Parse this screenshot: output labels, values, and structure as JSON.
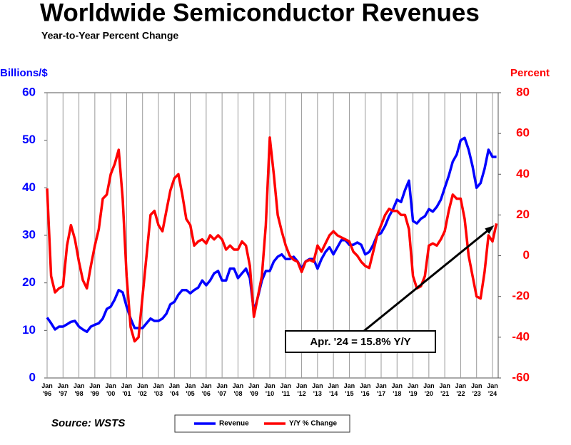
{
  "chart_data": {
    "type": "line",
    "title": "Worldwide Semiconductor Revenues",
    "subtitle": "Year-to-Year Percent Change",
    "ylabel": "Billions/$",
    "y2label": "Percent",
    "source": "Source: WSTS",
    "annotation": "Apr. '24 = 15.8% Y/Y",
    "x": [
      1996,
      1996.25,
      1996.5,
      1996.75,
      1997,
      1997.25,
      1997.5,
      1997.75,
      1998,
      1998.25,
      1998.5,
      1998.75,
      1999,
      1999.25,
      1999.5,
      1999.75,
      2000,
      2000.25,
      2000.5,
      2000.75,
      2001,
      2001.25,
      2001.5,
      2001.75,
      2002,
      2002.25,
      2002.5,
      2002.75,
      2003,
      2003.25,
      2003.5,
      2003.75,
      2004,
      2004.25,
      2004.5,
      2004.75,
      2005,
      2005.25,
      2005.5,
      2005.75,
      2006,
      2006.25,
      2006.5,
      2006.75,
      2007,
      2007.25,
      2007.5,
      2007.75,
      2008,
      2008.25,
      2008.5,
      2008.75,
      2009,
      2009.25,
      2009.5,
      2009.75,
      2010,
      2010.25,
      2010.5,
      2010.75,
      2011,
      2011.25,
      2011.5,
      2011.75,
      2012,
      2012.25,
      2012.5,
      2012.75,
      2013,
      2013.25,
      2013.5,
      2013.75,
      2014,
      2014.25,
      2014.5,
      2014.75,
      2015,
      2015.25,
      2015.5,
      2015.75,
      2016,
      2016.25,
      2016.5,
      2016.75,
      2017,
      2017.25,
      2017.5,
      2017.75,
      2018,
      2018.25,
      2018.5,
      2018.75,
      2019,
      2019.25,
      2019.5,
      2019.75,
      2020,
      2020.25,
      2020.5,
      2020.75,
      2021,
      2021.25,
      2021.5,
      2021.75,
      2022,
      2022.25,
      2022.5,
      2022.75,
      2023,
      2023.25,
      2023.5,
      2023.75,
      2024,
      2024.25
    ],
    "series": [
      {
        "name": "Revenue",
        "color": "#0000ff",
        "values": [
          12.7,
          11.5,
          10.2,
          10.8,
          10.8,
          11.3,
          11.8,
          12.0,
          10.8,
          10.2,
          9.7,
          10.8,
          11.2,
          11.5,
          12.5,
          14.5,
          15.0,
          16.5,
          18.5,
          18.0,
          15.0,
          12.5,
          10.5,
          10.5,
          10.5,
          11.5,
          12.5,
          12.0,
          12.0,
          12.5,
          13.5,
          15.5,
          16.0,
          17.5,
          18.5,
          18.5,
          17.8,
          18.5,
          19.0,
          20.5,
          19.5,
          20.5,
          22.0,
          22.5,
          20.5,
          20.5,
          23.0,
          23.0,
          21.0,
          22.0,
          23.0,
          21.0,
          14.0,
          17.0,
          20.5,
          22.5,
          22.5,
          24.5,
          25.5,
          26.0,
          25.0,
          25.0,
          25.5,
          24.5,
          23.0,
          24.5,
          25.0,
          25.0,
          23.0,
          25.0,
          26.5,
          27.5,
          26.0,
          27.5,
          29.0,
          29.0,
          28.0,
          28.0,
          28.5,
          28.0,
          26.0,
          26.5,
          28.0,
          30.0,
          30.5,
          32.0,
          34.0,
          35.5,
          37.5,
          37.0,
          39.5,
          41.5,
          33.0,
          32.5,
          33.5,
          34.0,
          35.5,
          35.0,
          36.0,
          37.5,
          40.0,
          42.5,
          45.5,
          47.0,
          50.0,
          50.5,
          48.0,
          44.5,
          40.0,
          41.0,
          44.0,
          48.0,
          46.5,
          46.5
        ]
      },
      {
        "name": "Y/Y % Change",
        "color": "#ff0000",
        "axis": "y2",
        "values": [
          33,
          -10,
          -18,
          -16,
          -15,
          5,
          15,
          8,
          -3,
          -12,
          -16,
          -5,
          5,
          13,
          28,
          30,
          40,
          45,
          52,
          28,
          -10,
          -35,
          -42,
          -40,
          -20,
          0,
          20,
          22,
          15,
          12,
          22,
          32,
          38,
          40,
          30,
          18,
          15,
          5,
          7,
          8,
          6,
          10,
          8,
          10,
          8,
          3,
          5,
          3,
          3,
          7,
          5,
          -5,
          -30,
          -20,
          -10,
          15,
          58,
          40,
          20,
          12,
          5,
          0,
          -2,
          -3,
          -8,
          -3,
          -2,
          -3,
          5,
          2,
          6,
          10,
          12,
          10,
          9,
          8,
          7,
          2,
          0,
          -3,
          -5,
          -6,
          2,
          10,
          15,
          20,
          23,
          22,
          22,
          20,
          20,
          13,
          -10,
          -16,
          -15,
          -10,
          5,
          6,
          5,
          8,
          12,
          22,
          30,
          28,
          28,
          18,
          0,
          -10,
          -20,
          -21,
          -8,
          10,
          7,
          15.8
        ]
      }
    ],
    "xlim": [
      1996,
      2024.4
    ],
    "xticks": [
      {
        "value": 1996,
        "label": "Jan '96"
      },
      {
        "value": 1997,
        "label": "Jan '97"
      },
      {
        "value": 1998,
        "label": "Jan '98"
      },
      {
        "value": 1999,
        "label": "Jan '99"
      },
      {
        "value": 2000,
        "label": "Jan '00"
      },
      {
        "value": 2001,
        "label": "Jan '01"
      },
      {
        "value": 2002,
        "label": "Jan '02"
      },
      {
        "value": 2003,
        "label": "Jan '03"
      },
      {
        "value": 2004,
        "label": "Jan '04"
      },
      {
        "value": 2005,
        "label": "Jan '05"
      },
      {
        "value": 2006,
        "label": "Jan '06"
      },
      {
        "value": 2007,
        "label": "Jan '07"
      },
      {
        "value": 2008,
        "label": "Jan '08"
      },
      {
        "value": 2009,
        "label": "Jan '09"
      },
      {
        "value": 2010,
        "label": "Jan '10"
      },
      {
        "value": 2011,
        "label": "Jan '11"
      },
      {
        "value": 2012,
        "label": "Jan '12"
      },
      {
        "value": 2013,
        "label": "Jan '13"
      },
      {
        "value": 2014,
        "label": "Jan '14"
      },
      {
        "value": 2015,
        "label": "Jan '15"
      },
      {
        "value": 2016,
        "label": "Jan '16"
      },
      {
        "value": 2017,
        "label": "Jan '17"
      },
      {
        "value": 2018,
        "label": "Jan '18"
      },
      {
        "value": 2019,
        "label": "Jan '19"
      },
      {
        "value": 2020,
        "label": "Jan '20"
      },
      {
        "value": 2021,
        "label": "Jan '21"
      },
      {
        "value": 2022,
        "label": "Jan '22"
      },
      {
        "value": 2023,
        "label": "Jan '23"
      },
      {
        "value": 2024,
        "label": "Jan '24"
      }
    ],
    "ylim": [
      0,
      60
    ],
    "yticks": [
      0,
      10,
      20,
      30,
      40,
      50,
      60
    ],
    "y2lim": [
      -60,
      80
    ],
    "y2ticks": [
      -60,
      -40,
      -20,
      0,
      20,
      40,
      60,
      80
    ],
    "grid": "x"
  }
}
